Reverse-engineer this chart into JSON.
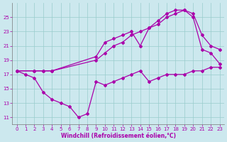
{
  "xlabel": "Windchill (Refroidissement éolien,°C)",
  "bg_color": "#cce8ee",
  "line_color": "#aa00aa",
  "grid_color": "#99cccc",
  "line1_x": [
    0,
    1,
    2,
    3,
    4,
    5,
    6,
    7,
    8,
    9,
    10,
    11,
    12,
    13,
    14,
    15,
    16,
    17,
    18,
    19,
    20,
    21,
    22,
    23
  ],
  "line1_y": [
    17.5,
    17.0,
    16.5,
    14.5,
    13.5,
    13.0,
    12.5,
    11.0,
    11.5,
    16.0,
    15.5,
    16.0,
    16.5,
    17.0,
    17.5,
    16.0,
    16.5,
    17.0,
    17.0,
    17.0,
    17.5,
    17.5,
    18.0,
    18.0
  ],
  "line2_x": [
    0,
    2,
    3,
    4,
    9,
    10,
    11,
    12,
    13,
    14,
    15,
    16,
    17,
    18,
    19,
    20,
    21,
    22,
    23
  ],
  "line2_y": [
    17.5,
    17.5,
    17.5,
    17.5,
    19.5,
    21.5,
    22.0,
    22.5,
    23.0,
    21.0,
    23.5,
    24.0,
    25.0,
    25.5,
    26.0,
    25.0,
    20.5,
    20.0,
    18.5
  ],
  "line3_x": [
    0,
    2,
    3,
    4,
    9,
    10,
    11,
    12,
    13,
    14,
    15,
    16,
    17,
    18,
    19,
    20,
    21,
    22,
    23
  ],
  "line3_y": [
    17.5,
    17.5,
    17.5,
    17.5,
    19.0,
    20.0,
    21.0,
    21.5,
    22.5,
    23.0,
    23.5,
    24.5,
    25.5,
    26.0,
    26.0,
    25.5,
    22.5,
    21.0,
    20.5
  ],
  "ylim": [
    10,
    27
  ],
  "xlim": [
    -0.5,
    23.5
  ],
  "yticks": [
    11,
    13,
    15,
    17,
    19,
    21,
    23,
    25
  ],
  "xticks": [
    0,
    1,
    2,
    3,
    4,
    5,
    6,
    7,
    8,
    9,
    10,
    11,
    12,
    13,
    14,
    15,
    16,
    17,
    18,
    19,
    20,
    21,
    22,
    23
  ]
}
